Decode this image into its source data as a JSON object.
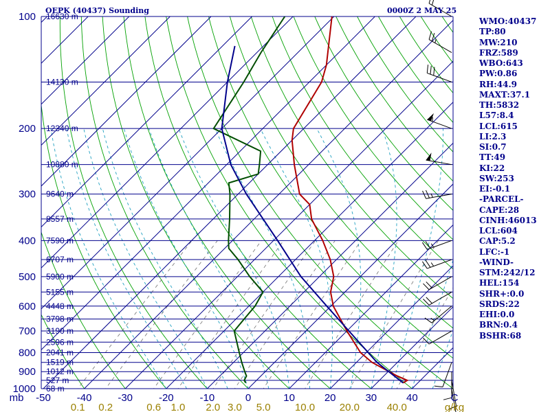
{
  "header": {
    "station": "OEPK (40437) Sounding",
    "time": "0000Z  2 MAY 25"
  },
  "indices": [
    "WMO:40437",
    "TP:80",
    "MW:210",
    "FRZ:589",
    "WBO:643",
    "PW:0.86",
    "RH:44.9",
    "MAXT:37.1",
    "TH:5832",
    "L57:8.4",
    "LCL:615",
    "LI:2.3",
    "SI:0.7",
    "TT:49",
    "KI:22",
    "SW:253",
    "EI:-0.1",
    "-PARCEL-",
    "CAPE:28",
    "CINH:46013",
    "LCL:604",
    "CAP:5.2",
    "LFC:-1",
    "-WIND-",
    "STM:242/12",
    "HEL:154",
    "SHR+:0.0",
    "SRDS:22",
    "EHI:0.0",
    "BRN:0.4",
    "BSHR:68"
  ],
  "chart_data": {
    "type": "line",
    "title": "OEPK (40437) Sounding",
    "xlabel": "C",
    "ylabel": "mb",
    "mixing_ratio_unit": "g/kg",
    "pressure_labels": [
      "100",
      "200",
      "300",
      "400",
      "500",
      "600",
      "700",
      "800",
      "900",
      "1000"
    ],
    "pressure_axis_label": "mb",
    "temperature_ticks": [
      -50,
      -40,
      -30,
      -20,
      -10,
      0,
      10,
      20,
      30,
      40
    ],
    "temperature_tick_labels": [
      "-50",
      "-40",
      "-30",
      "-20",
      "-10",
      "0",
      "10",
      "20",
      "30",
      "40"
    ],
    "temperature_unit_label": "C",
    "mixing_ratio_labels": [
      "0.1",
      "0.2",
      "0.6",
      "1.0",
      "2.0",
      "3.0",
      "5.0",
      "10.0",
      "20.0",
      "40.0"
    ],
    "height_levels": [
      {
        "p": 100,
        "label": "16630 m"
      },
      {
        "p": 150,
        "label": "14130 m"
      },
      {
        "p": 200,
        "label": "12340 m"
      },
      {
        "p": 250,
        "label": "10880 m"
      },
      {
        "p": 300,
        "label": "9640 m"
      },
      {
        "p": 350,
        "label": "8557 m"
      },
      {
        "p": 400,
        "label": "7590 m"
      },
      {
        "p": 450,
        "label": "6707 m"
      },
      {
        "p": 500,
        "label": "5900 m"
      },
      {
        "p": 550,
        "label": "5155 m"
      },
      {
        "p": 600,
        "label": "4448 m"
      },
      {
        "p": 650,
        "label": "3798 m"
      },
      {
        "p": 700,
        "label": "3190 m"
      },
      {
        "p": 750,
        "label": "2596 m"
      },
      {
        "p": 800,
        "label": "2041 m"
      },
      {
        "p": 850,
        "label": "1519 m"
      },
      {
        "p": 900,
        "label": "1012 m"
      },
      {
        "p": 950,
        "label": "527 m"
      },
      {
        "p": 1000,
        "label": "68 m"
      }
    ],
    "pressure_range": [
      1000,
      100
    ],
    "temperature_range": [
      -50,
      50
    ],
    "series": [
      {
        "kind": "temperature",
        "color": "#b00000",
        "points": [
          {
            "p": 965,
            "t": 36.4
          },
          {
            "p": 950,
            "t": 36.8
          },
          {
            "p": 925,
            "t": 33.3
          },
          {
            "p": 850,
            "t": 23.8
          },
          {
            "p": 800,
            "t": 18.6
          },
          {
            "p": 700,
            "t": 10.0
          },
          {
            "p": 600,
            "t": 0.6
          },
          {
            "p": 550,
            "t": -3.5
          },
          {
            "p": 500,
            "t": -6.5
          },
          {
            "p": 450,
            "t": -11.5
          },
          {
            "p": 400,
            "t": -18.0
          },
          {
            "p": 350,
            "t": -26.0
          },
          {
            "p": 320,
            "t": -30.0
          },
          {
            "p": 300,
            "t": -35.0
          },
          {
            "p": 250,
            "t": -43.5
          },
          {
            "p": 215,
            "t": -50.0
          },
          {
            "p": 200,
            "t": -52.5
          },
          {
            "p": 150,
            "t": -57.0
          },
          {
            "p": 135,
            "t": -60.0
          },
          {
            "p": 100,
            "t": -70.5
          }
        ]
      },
      {
        "kind": "dewpoint",
        "color": "#004d00",
        "points": [
          {
            "p": 965,
            "t": -2.0
          },
          {
            "p": 950,
            "t": -3.0
          },
          {
            "p": 925,
            "t": -3.5
          },
          {
            "p": 900,
            "t": -5.0
          },
          {
            "p": 850,
            "t": -8.0
          },
          {
            "p": 800,
            "t": -11.0
          },
          {
            "p": 700,
            "t": -17.5
          },
          {
            "p": 650,
            "t": -18.0
          },
          {
            "p": 600,
            "t": -18.5
          },
          {
            "p": 550,
            "t": -20.0
          },
          {
            "p": 500,
            "t": -27.0
          },
          {
            "p": 450,
            "t": -34.0
          },
          {
            "p": 420,
            "t": -39.0
          },
          {
            "p": 400,
            "t": -41.0
          },
          {
            "p": 350,
            "t": -46.0
          },
          {
            "p": 300,
            "t": -52.0
          },
          {
            "p": 280,
            "t": -55.0
          },
          {
            "p": 265,
            "t": -50.0
          },
          {
            "p": 250,
            "t": -52.0
          },
          {
            "p": 230,
            "t": -55.0
          },
          {
            "p": 200,
            "t": -72.0
          },
          {
            "p": 150,
            "t": -76.0
          },
          {
            "p": 125,
            "t": -79.0
          },
          {
            "p": 100,
            "t": -82.0
          }
        ]
      },
      {
        "kind": "parcel",
        "color": "#00008b",
        "points": [
          {
            "p": 965,
            "t": 36.4
          },
          {
            "p": 850,
            "t": 25.0
          },
          {
            "p": 700,
            "t": 10.5
          },
          {
            "p": 600,
            "t": -1.0
          },
          {
            "p": 500,
            "t": -14.5
          },
          {
            "p": 400,
            "t": -29.0
          },
          {
            "p": 300,
            "t": -48.0
          },
          {
            "p": 250,
            "t": -59.0
          },
          {
            "p": 200,
            "t": -70.0
          },
          {
            "p": 150,
            "t": -80.0
          },
          {
            "p": 120,
            "t": -87.0
          }
        ]
      }
    ],
    "wind_barbs": [
      {
        "p": 100,
        "dir": 300,
        "kt": 20
      },
      {
        "p": 125,
        "dir": 300,
        "kt": 25
      },
      {
        "p": 150,
        "dir": 290,
        "kt": 30
      },
      {
        "p": 200,
        "dir": 290,
        "kt": 55
      },
      {
        "p": 250,
        "dir": 280,
        "kt": 50
      },
      {
        "p": 300,
        "dir": 260,
        "kt": 25
      },
      {
        "p": 400,
        "dir": 250,
        "kt": 25
      },
      {
        "p": 450,
        "dir": 250,
        "kt": 25
      },
      {
        "p": 500,
        "dir": 240,
        "kt": 20
      },
      {
        "p": 550,
        "dir": 240,
        "kt": 20
      },
      {
        "p": 600,
        "dir": 230,
        "kt": 15
      },
      {
        "p": 700,
        "dir": 240,
        "kt": 10
      },
      {
        "p": 850,
        "dir": 200,
        "kt": 10
      },
      {
        "p": 900,
        "dir": 180,
        "kt": 10
      },
      {
        "p": 950,
        "dir": 170,
        "kt": 10
      },
      {
        "p": 1000,
        "dir": 170,
        "kt": 10
      }
    ],
    "grid": true,
    "colors": {
      "isobar": "#00008b",
      "isotherm": "#00008b",
      "dry_adiabat": "#00a000",
      "moist_adiabat": "#20a0c0",
      "mixing_ratio": "#707070",
      "axis_label": "#00008b",
      "mixing_ratio_label": "#9a8000"
    }
  }
}
